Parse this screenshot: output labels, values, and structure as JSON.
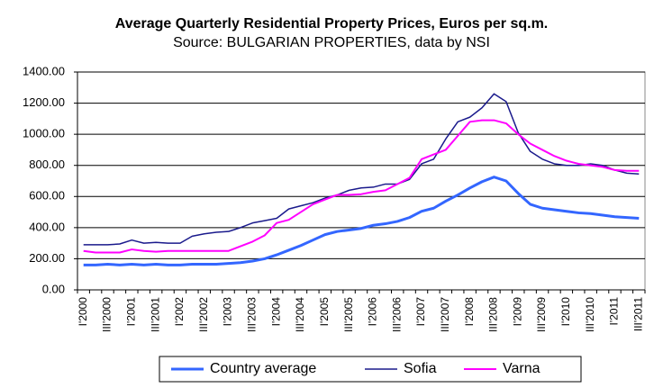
{
  "chart_data": {
    "type": "line",
    "title": "Average Quarterly Residential Property Prices, Euros per sq.m.",
    "subtitle": "Source: BULGARIAN PROPERTIES, data by NSI",
    "categories": [
      "I'2000",
      null,
      "III'2000",
      null,
      "I'2001",
      null,
      "III'2001",
      null,
      "I'2002",
      null,
      "III'2002",
      null,
      "I'2003",
      null,
      "III'2003",
      null,
      "I'2004",
      null,
      "III'2004",
      null,
      "I'2005",
      null,
      "III'2005",
      null,
      "I'2006",
      null,
      "III'2006",
      null,
      "I'2007",
      null,
      "III'2007",
      null,
      "I'2008",
      null,
      "III'2008",
      null,
      "I'2009",
      null,
      "III'2009",
      null,
      "I'2010",
      null,
      "III'2010",
      null,
      "I'2011",
      null,
      "III'2011"
    ],
    "series": [
      {
        "name": "Country average",
        "color": "#3366ff",
        "values": [
          160,
          160,
          165,
          160,
          165,
          160,
          165,
          160,
          160,
          165,
          165,
          165,
          170,
          175,
          185,
          200,
          225,
          255,
          285,
          320,
          355,
          375,
          385,
          395,
          415,
          425,
          440,
          465,
          505,
          525,
          570,
          610,
          655,
          695,
          725,
          700,
          620,
          550,
          525,
          515,
          505,
          495,
          490,
          480,
          470,
          465,
          460
        ]
      },
      {
        "name": "Sofia",
        "color": "#1a1a8c",
        "values": [
          290,
          290,
          290,
          295,
          320,
          300,
          305,
          300,
          300,
          345,
          360,
          370,
          375,
          400,
          430,
          445,
          460,
          520,
          540,
          560,
          590,
          610,
          640,
          655,
          660,
          680,
          680,
          710,
          810,
          840,
          970,
          1080,
          1110,
          1170,
          1260,
          1210,
          1010,
          890,
          840,
          810,
          800,
          800,
          810,
          800,
          770,
          750,
          745
        ]
      },
      {
        "name": "Varna",
        "color": "#ff00ff",
        "values": [
          250,
          240,
          240,
          240,
          260,
          250,
          245,
          250,
          250,
          250,
          250,
          250,
          250,
          280,
          310,
          350,
          430,
          450,
          500,
          550,
          580,
          610,
          610,
          615,
          630,
          640,
          680,
          720,
          840,
          870,
          900,
          990,
          1080,
          1090,
          1090,
          1070,
          1000,
          940,
          900,
          860,
          830,
          810,
          800,
          790,
          770,
          765,
          765
        ]
      }
    ],
    "ylim": [
      0,
      1400
    ],
    "yticks": [
      {
        "value": 0,
        "label": "0.00"
      },
      {
        "value": 200,
        "label": "200.00"
      },
      {
        "value": 400,
        "label": "400.00"
      },
      {
        "value": 600,
        "label": "600.00"
      },
      {
        "value": 800,
        "label": "800.00"
      },
      {
        "value": 1000,
        "label": "1000.00"
      },
      {
        "value": 1200,
        "label": "1200.00"
      },
      {
        "value": 1400,
        "label": "1400.00"
      }
    ],
    "grid": true,
    "legend": "bottom"
  }
}
